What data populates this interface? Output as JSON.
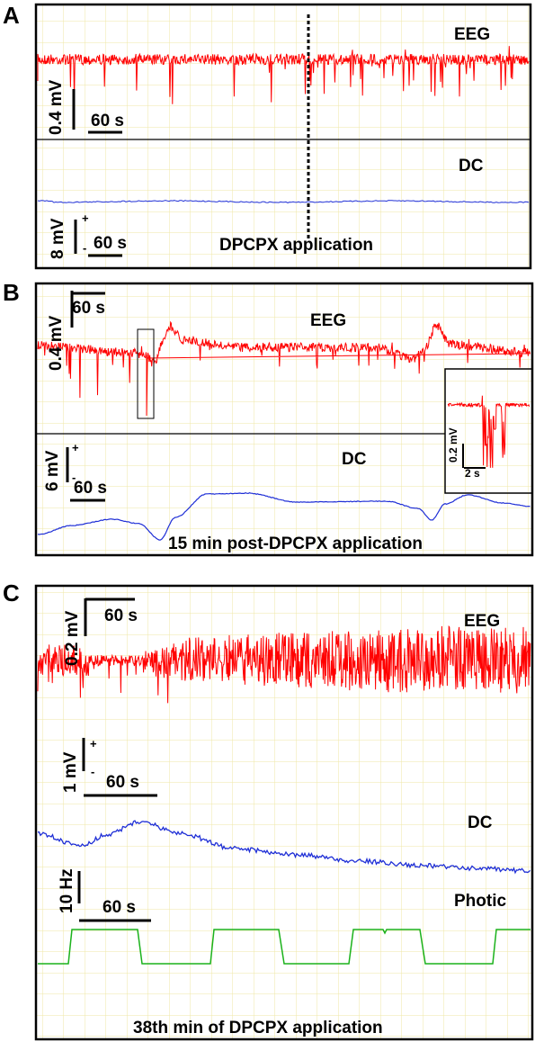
{
  "colors": {
    "eeg": "#ff0000",
    "dc": "#1f2fd6",
    "photic": "#1bb21b",
    "grid": "#efe7a6",
    "frame": "#000000"
  },
  "chart_data": [
    {
      "type": "line",
      "panel": "A",
      "traces": [
        "EEG",
        "DC"
      ],
      "eeg_scale": {
        "value": "0.4 mV",
        "time": "60 s"
      },
      "dc_scale": {
        "value": "8 mV",
        "time": "60 s",
        "plus": "+",
        "minus": "-"
      },
      "annotation": "DPCPX application",
      "grid": true
    },
    {
      "type": "line",
      "panel": "B",
      "traces": [
        "EEG",
        "DC"
      ],
      "eeg_scale": {
        "value": "0.4 mV",
        "time": "60 s"
      },
      "dc_scale": {
        "value": "6 mV",
        "time": "60 s",
        "plus": "+",
        "minus": "-"
      },
      "inset_scale": {
        "value": "0.2 mV",
        "time": "2 s"
      },
      "annotation": "15 min post-DPCPX application",
      "grid": true
    },
    {
      "type": "line",
      "panel": "C",
      "traces": [
        "EEG",
        "DC",
        "Photic"
      ],
      "eeg_scale": {
        "value": "0.2 mV",
        "time": "60 s"
      },
      "dc_scale": {
        "value": "1 mV",
        "time": "60 s",
        "plus": "+",
        "minus": "-"
      },
      "photic_scale": {
        "value": "10 Hz",
        "time": "60 s"
      },
      "annotation": "38th min of DPCPX application",
      "grid": true
    }
  ]
}
